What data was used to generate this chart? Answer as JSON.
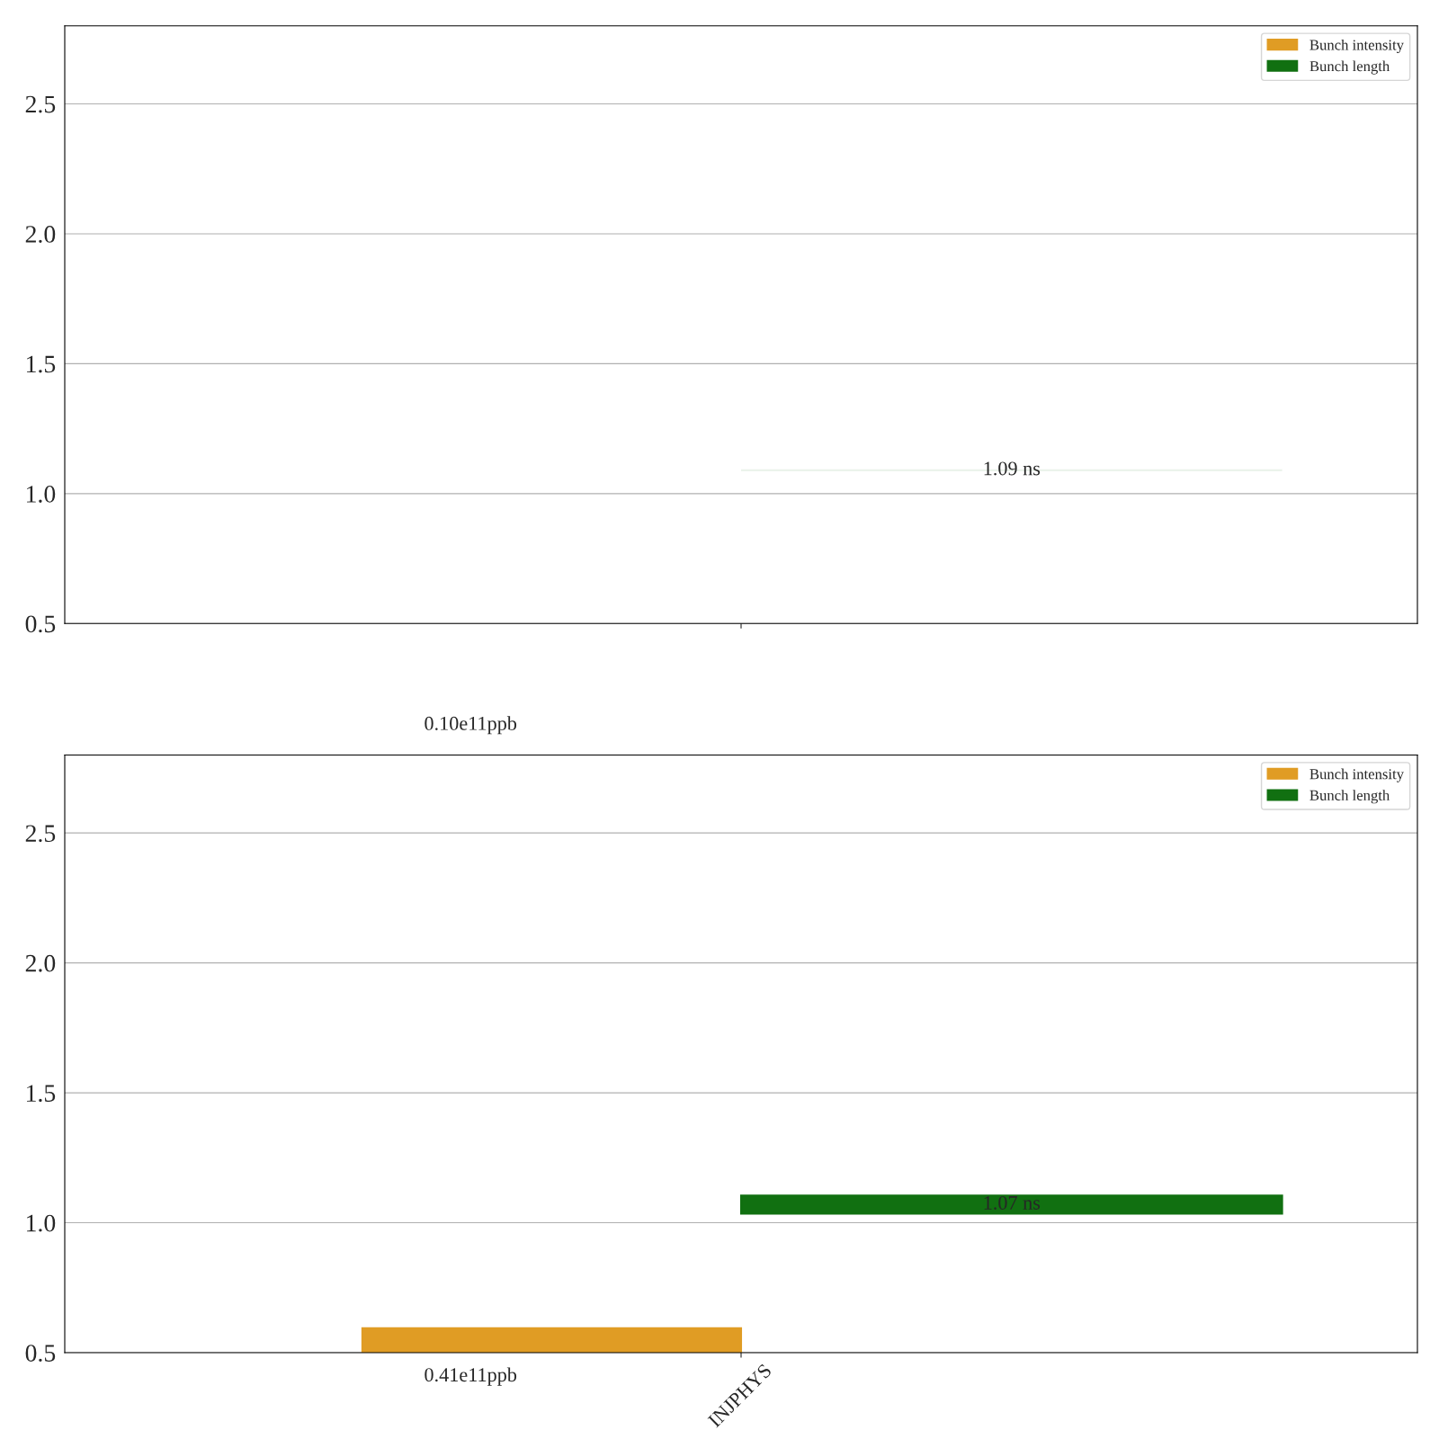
{
  "chart_data": [
    {
      "type": "bar",
      "categories": [
        null
      ],
      "tick_labels": "y",
      "ylim": [
        0.5,
        2.8
      ],
      "yticks": [
        {
          "value": 0.5,
          "label": "0.5"
        },
        {
          "value": 1,
          "label": "1.0"
        },
        {
          "value": 1.5,
          "label": "1.5"
        },
        {
          "value": 2,
          "label": "2.0"
        },
        {
          "value": 2.5,
          "label": "2.5"
        }
      ],
      "grid": "y",
      "legend": "top right",
      "series": [
        {
          "name": "Bunch intensity",
          "color": "#e09c24",
          "values": [
            null
          ],
          "base": [
            null
          ]
        },
        {
          "name": "Bunch length",
          "color": "#117011",
          "values": [
            0
          ],
          "base": [
            1.09
          ]
        }
      ],
      "annotations": [
        "0.10e11ppb",
        "1.09 ns"
      ]
    },
    {
      "type": "bar",
      "categories": [
        "INJPHYS"
      ],
      "ylim": [
        0.5,
        2.8
      ],
      "yticks": [
        {
          "value": 0.5,
          "label": "0.5"
        },
        {
          "value": 1,
          "label": "1.0"
        },
        {
          "value": 1.5,
          "label": "1.5"
        },
        {
          "value": 2,
          "label": "2.0"
        },
        {
          "value": 2.5,
          "label": "2.5"
        }
      ],
      "grid": "y",
      "legend": "top right",
      "series": [
        {
          "name": "Bunch intensity",
          "color": "#e09c24",
          "values": [
            0.094
          ],
          "base": [
            0.5
          ]
        },
        {
          "name": "Bunch length",
          "color": "#117011",
          "values": [
            0.07
          ],
          "base": [
            1.035
          ]
        }
      ],
      "annotations": [
        "0.41e11ppb",
        "1.07 ns"
      ]
    }
  ]
}
